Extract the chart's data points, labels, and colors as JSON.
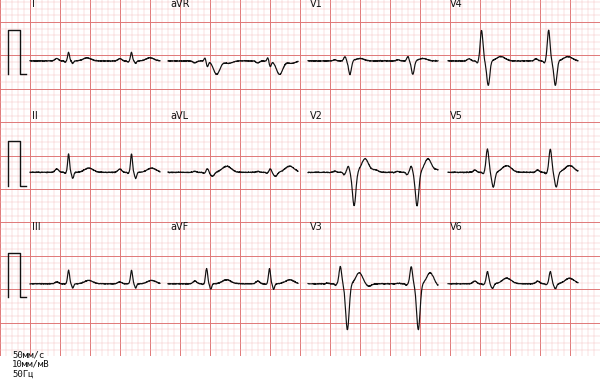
{
  "bg_color": "#fdf0f0",
  "grid_minor_color": "#f5b8b8",
  "grid_major_color": "#e07878",
  "line_color": "#111111",
  "label_color": "#111111",
  "figsize": [
    6.0,
    3.83
  ],
  "dpi": 100,
  "bottom_text": [
    "50мм/с",
    "10мм/мВ",
    "50Гц"
  ],
  "row_labels": [
    [
      "I",
      "aVR",
      "V1",
      "V4"
    ],
    [
      "II",
      "aVL",
      "V2",
      "V5"
    ],
    [
      "III",
      "aVF",
      "V3",
      "V6"
    ]
  ]
}
